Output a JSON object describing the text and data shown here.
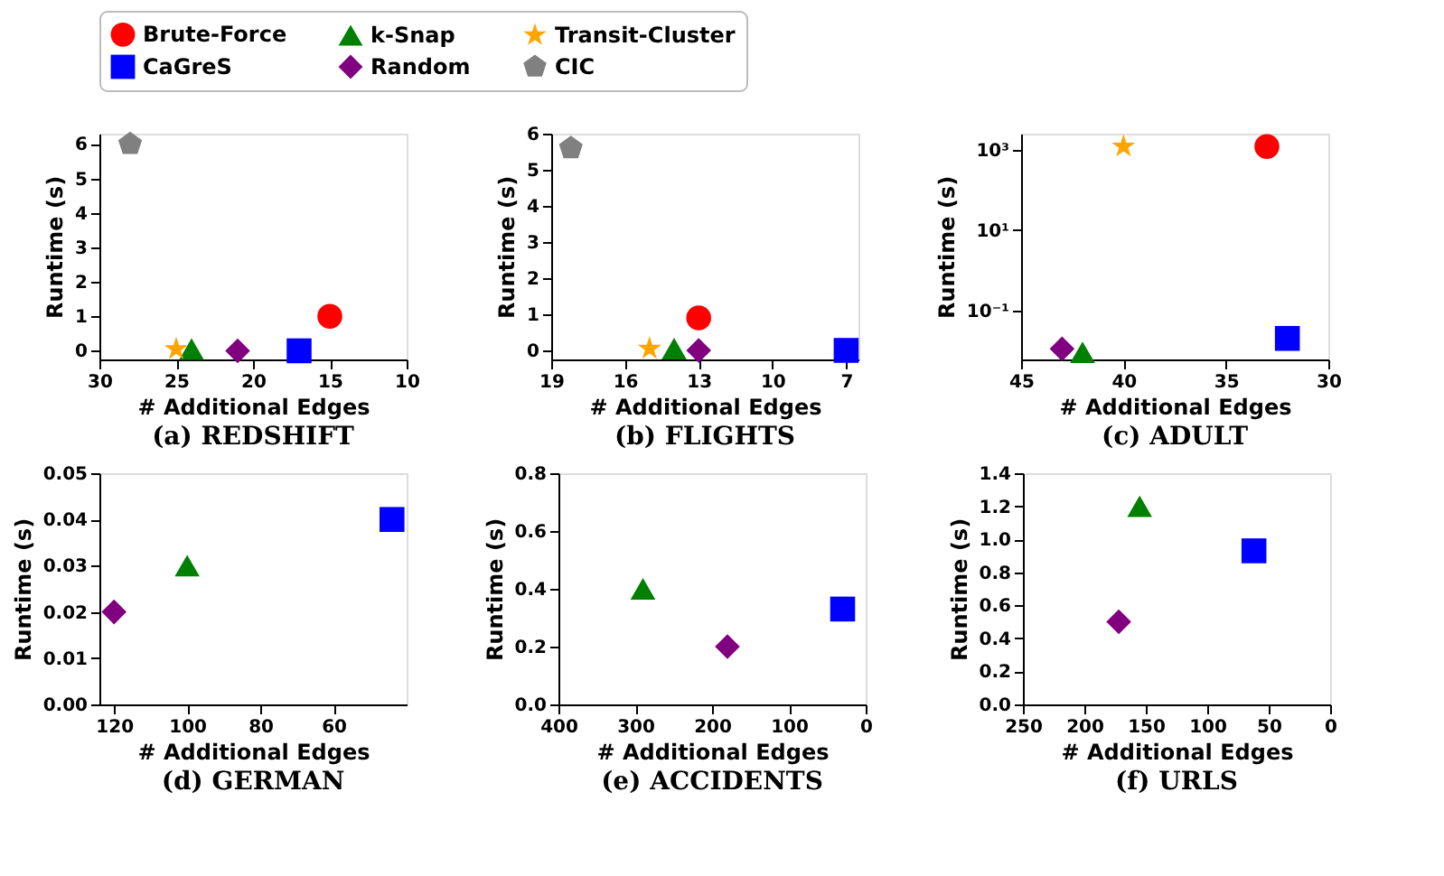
{
  "chart_data": [
    {
      "type": "scatter",
      "title": "(a) REDSHIFT",
      "xlabel": "# Additional Edges",
      "ylabel": "Runtime (s)",
      "xlim": [
        30,
        10
      ],
      "xticks": [
        30,
        25,
        20,
        15,
        10
      ],
      "ylim": [
        -0.25,
        6.3
      ],
      "yticks": [
        0,
        1,
        2,
        3,
        4,
        5,
        6
      ],
      "legend": "top",
      "series": [
        {
          "name": "Brute-Force",
          "color": "#ff0000",
          "marker": "circle",
          "x": [
            15
          ],
          "values": [
            1
          ]
        },
        {
          "name": "k-Snap",
          "color": "#008000",
          "marker": "triangle",
          "x": [
            24
          ],
          "values": [
            0.05
          ]
        },
        {
          "name": "Transit-Cluster",
          "color": "#ffa500",
          "marker": "star",
          "x": [
            25
          ],
          "values": [
            0.05
          ]
        },
        {
          "name": "CaGreS",
          "color": "#0000ff",
          "marker": "square",
          "x": [
            17
          ],
          "values": [
            0
          ]
        },
        {
          "name": "Random",
          "color": "#800080",
          "marker": "diamond",
          "x": [
            21
          ],
          "values": [
            0
          ]
        },
        {
          "name": "CIC",
          "color": "#808080",
          "x": [
            28
          ],
          "values": [
            6
          ]
        }
      ]
    },
    {
      "type": "scatter",
      "title": "(b) FLIGHTS",
      "xlabel": "# Additional Edges",
      "ylabel": "Runtime (s)",
      "xlim": [
        19,
        6.5
      ],
      "xticks": [
        19,
        16,
        13,
        10,
        7
      ],
      "ylim": [
        -0.25,
        6
      ],
      "yticks": [
        0,
        1,
        2,
        3,
        4,
        5,
        6
      ],
      "series": [
        {
          "name": "Brute-Force",
          "color": "#ff0000",
          "marker": "circle",
          "x": [
            13
          ],
          "values": [
            0.9
          ]
        },
        {
          "name": "k-Snap",
          "color": "#008000",
          "marker": "triangle",
          "x": [
            14
          ],
          "values": [
            0.05
          ]
        },
        {
          "name": "Transit-Cluster",
          "color": "#ffa500",
          "marker": "star",
          "x": [
            15
          ],
          "values": [
            0.05
          ]
        },
        {
          "name": "CaGreS",
          "color": "#0000ff",
          "marker": "square",
          "x": [
            7
          ],
          "values": [
            0
          ]
        },
        {
          "name": "Random",
          "color": "#800080",
          "marker": "diamond",
          "x": [
            13
          ],
          "values": [
            0
          ]
        },
        {
          "name": "CIC",
          "color": "#808080",
          "x": [
            18.2
          ],
          "values": [
            5.6
          ]
        }
      ]
    },
    {
      "type": "scatter",
      "title": "(c) ADULT",
      "xlabel": "# Additional Edges",
      "ylabel": "Runtime (s)",
      "log": true,
      "xlim": [
        45,
        30
      ],
      "xticks": [
        45,
        40,
        35,
        30
      ],
      "ylim": [
        0.006,
        2500
      ],
      "yticks": [
        {
          "value": 1000,
          "label": "10³"
        },
        {
          "value": 10,
          "label": "10¹"
        },
        {
          "value": 0.1,
          "label": "10⁻¹"
        }
      ],
      "series": [
        {
          "name": "Brute-Force",
          "color": "#ff0000",
          "marker": "circle",
          "x": [
            33
          ],
          "values": [
            1200
          ]
        },
        {
          "name": "k-Snap",
          "color": "#008000",
          "marker": "triangle",
          "x": [
            42
          ],
          "values": [
            0.009
          ]
        },
        {
          "name": "Transit-Cluster",
          "color": "#ffa500",
          "marker": "star",
          "x": [
            40
          ],
          "values": [
            1200
          ]
        },
        {
          "name": "CaGreS",
          "color": "#0000ff",
          "marker": "square",
          "x": [
            32
          ],
          "values": [
            0.02
          ]
        },
        {
          "name": "Random",
          "color": "#800080",
          "marker": "diamond",
          "x": [
            43
          ],
          "values": [
            0.011
          ]
        }
      ]
    },
    {
      "type": "scatter",
      "title": "(d) GERMAN",
      "xlabel": "# Additional Edges",
      "ylabel": "Runtime (s)",
      "xlim": [
        124,
        40
      ],
      "xticks": [
        120,
        100,
        80,
        60
      ],
      "ylim": [
        0,
        0.05
      ],
      "yticks": [
        {
          "value": 0,
          "label": "0.00"
        },
        {
          "value": 0.01,
          "label": "0.01"
        },
        {
          "value": 0.02,
          "label": "0.02"
        },
        {
          "value": 0.03,
          "label": "0.03"
        },
        {
          "value": 0.04,
          "label": "0.04"
        },
        {
          "value": 0.05,
          "label": "0.05"
        }
      ],
      "series": [
        {
          "name": "k-Snap",
          "color": "#008000",
          "marker": "triangle",
          "x": [
            100
          ],
          "values": [
            0.03
          ]
        },
        {
          "name": "CaGreS",
          "color": "#0000ff",
          "marker": "square",
          "x": [
            44
          ],
          "values": [
            0.04
          ]
        },
        {
          "name": "Random",
          "color": "#800080",
          "marker": "diamond",
          "x": [
            120
          ],
          "values": [
            0.02
          ]
        }
      ]
    },
    {
      "type": "scatter",
      "title": "(e) ACCIDENTS",
      "xlabel": "# Additional Edges",
      "ylabel": "Runtime (s)",
      "xlim": [
        400,
        0
      ],
      "xticks": [
        400,
        300,
        200,
        100,
        0
      ],
      "ylim": [
        0,
        0.8
      ],
      "yticks": [
        {
          "value": 0,
          "label": "0.0"
        },
        0.2,
        0.4,
        0.6,
        0.8
      ],
      "series": [
        {
          "name": "k-Snap",
          "color": "#008000",
          "marker": "triangle",
          "x": [
            290
          ],
          "values": [
            0.4
          ]
        },
        {
          "name": "CaGreS",
          "color": "#0000ff",
          "marker": "square",
          "x": [
            30
          ],
          "values": [
            0.33
          ]
        },
        {
          "name": "Random",
          "color": "#800080",
          "marker": "diamond",
          "x": [
            180
          ],
          "values": [
            0.2
          ]
        }
      ]
    },
    {
      "type": "scatter",
      "title": "(f) URLS",
      "xlabel": "# Additional Edges",
      "ylabel": "Runtime (s)",
      "xlim": [
        250,
        0
      ],
      "xticks": [
        250,
        200,
        150,
        100,
        50,
        0
      ],
      "ylim": [
        0,
        1.4
      ],
      "yticks": [
        {
          "value": 0,
          "label": "0.0"
        },
        0.2,
        0.4,
        0.6,
        0.8,
        {
          "value": 1,
          "label": "1.0"
        },
        1.2,
        1.4
      ],
      "series": [
        {
          "name": "k-Snap",
          "color": "#008000",
          "marker": "triangle",
          "x": [
            155
          ],
          "values": [
            1.2
          ]
        },
        {
          "name": "CaGreS",
          "color": "#0000ff",
          "marker": "square",
          "x": [
            62
          ],
          "values": [
            0.93
          ]
        },
        {
          "name": "Random",
          "color": "#800080",
          "marker": "diamond",
          "x": [
            172
          ],
          "values": [
            0.5
          ]
        }
      ]
    }
  ]
}
